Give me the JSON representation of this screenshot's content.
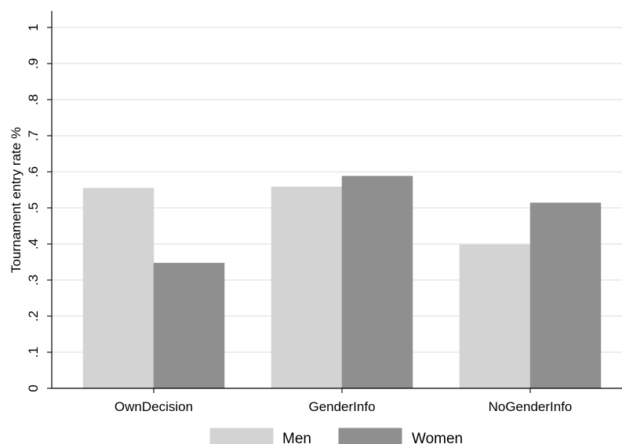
{
  "chart_data": {
    "type": "bar",
    "categories": [
      "OwnDecision",
      "GenderInfo",
      "NoGenderInfo"
    ],
    "series": [
      {
        "name": "Men",
        "values": [
          0.555,
          0.558,
          0.398
        ],
        "color": "#d3d3d3"
      },
      {
        "name": "Women",
        "values": [
          0.347,
          0.588,
          0.514
        ],
        "color": "#8f8f8f"
      }
    ],
    "ylabel": "Tournament entry rate %",
    "xlabel": "",
    "ylim": [
      0,
      1
    ],
    "yticks": [
      "0",
      ".1",
      ".2",
      ".3",
      ".4",
      ".5",
      ".6",
      ".7",
      ".8",
      ".9",
      "1"
    ],
    "grid": true,
    "legend_position": "bottom"
  }
}
